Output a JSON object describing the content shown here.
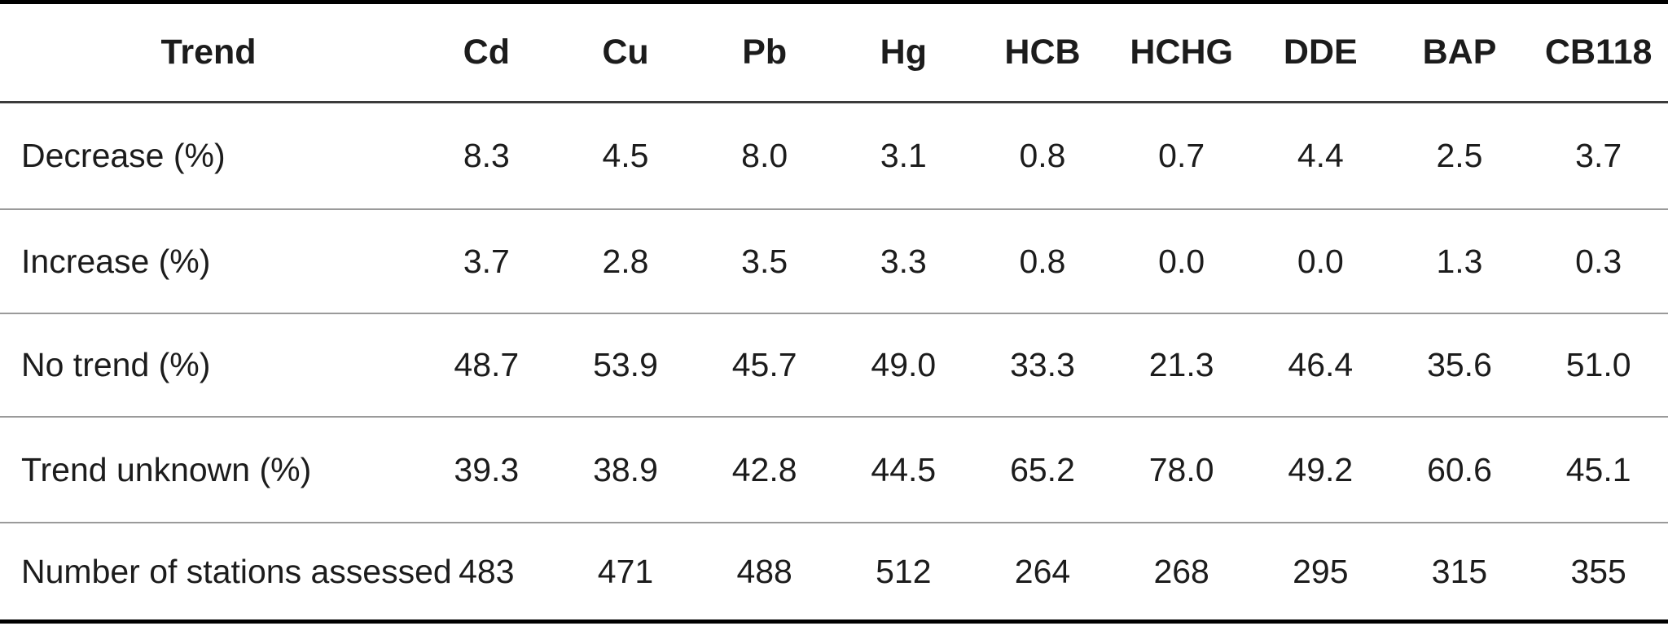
{
  "table": {
    "columns": [
      "Trend",
      "Cd",
      "Cu",
      "Pb",
      "Hg",
      "HCB",
      "HCHG",
      "DDE",
      "BAP",
      "CB118"
    ],
    "rows": [
      {
        "label": "Decrease (%)",
        "values": [
          "8.3",
          "4.5",
          "8.0",
          "3.1",
          "0.8",
          "0.7",
          "4.4",
          "2.5",
          "3.7"
        ]
      },
      {
        "label": "Increase (%)",
        "values": [
          "3.7",
          "2.8",
          "3.5",
          "3.3",
          "0.8",
          "0.0",
          "0.0",
          "1.3",
          "0.3"
        ]
      },
      {
        "label": "No trend (%)",
        "values": [
          "48.7",
          "53.9",
          "45.7",
          "49.0",
          "33.3",
          "21.3",
          "46.4",
          "35.6",
          "51.0"
        ]
      },
      {
        "label": "Trend unknown (%)",
        "values": [
          "39.3",
          "38.9",
          "42.8",
          "44.5",
          "65.2",
          "78.0",
          "49.2",
          "60.6",
          "45.1"
        ]
      },
      {
        "label": "Number of stations assessed",
        "values": [
          "483",
          "471",
          "488",
          "512",
          "264",
          "268",
          "295",
          "315",
          "355"
        ]
      }
    ]
  },
  "chart_data": {
    "type": "table",
    "title": "",
    "categories": [
      "Cd",
      "Cu",
      "Pb",
      "Hg",
      "HCB",
      "HCHG",
      "DDE",
      "BAP",
      "CB118"
    ],
    "row_header": "Trend",
    "series": [
      {
        "name": "Decrease (%)",
        "values": [
          8.3,
          4.5,
          8.0,
          3.1,
          0.8,
          0.7,
          4.4,
          2.5,
          3.7
        ]
      },
      {
        "name": "Increase (%)",
        "values": [
          3.7,
          2.8,
          3.5,
          3.3,
          0.8,
          0.0,
          0.0,
          1.3,
          0.3
        ]
      },
      {
        "name": "No trend (%)",
        "values": [
          48.7,
          53.9,
          45.7,
          49.0,
          33.3,
          21.3,
          46.4,
          35.6,
          51.0
        ]
      },
      {
        "name": "Trend unknown (%)",
        "values": [
          39.3,
          38.9,
          42.8,
          44.5,
          65.2,
          78.0,
          49.2,
          60.6,
          45.1
        ]
      },
      {
        "name": "Number of stations assessed",
        "values": [
          483,
          471,
          488,
          512,
          264,
          268,
          295,
          315,
          355
        ]
      }
    ]
  }
}
